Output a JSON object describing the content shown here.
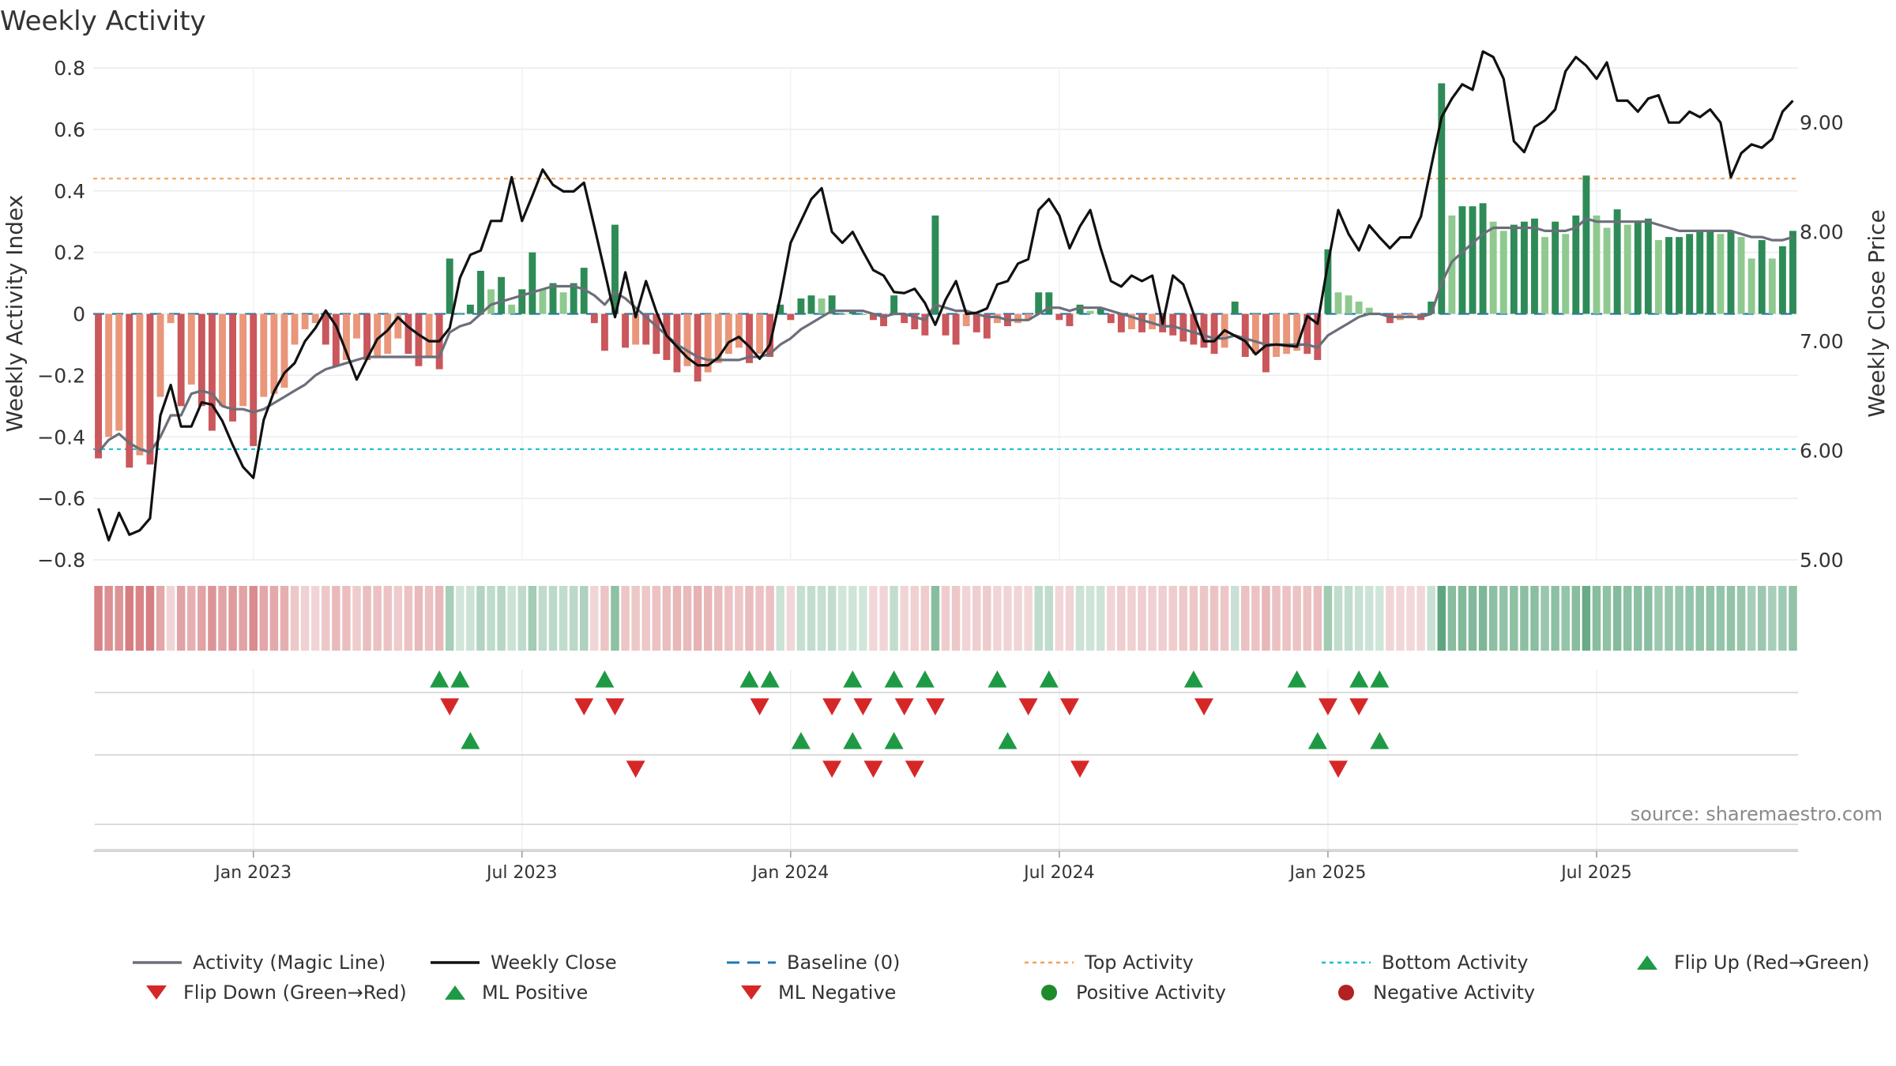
{
  "chart_data": {
    "type": "bar",
    "title": "Weekly Activity",
    "source": "source: sharemaestro.com",
    "ylabel": "Weekly Activity Index",
    "ylabel_right": "Weekly Close Price",
    "ylim": [
      -0.8,
      0.8
    ],
    "ylim_right": [
      5.0,
      9.5
    ],
    "y_ticks": [
      "0.8",
      "0.6",
      "0.4",
      "0.2",
      "0",
      "−0.2",
      "−0.4",
      "−0.6",
      "−0.8"
    ],
    "y_tick_values": [
      0.8,
      0.6,
      0.4,
      0.2,
      0,
      -0.2,
      -0.4,
      -0.6,
      -0.8
    ],
    "y_right_ticks": [
      "9.00",
      "8.00",
      "7.00",
      "6.00",
      "5.00"
    ],
    "y_right_tick_values": [
      9.0,
      8.0,
      7.0,
      6.0,
      5.0
    ],
    "x_ticks": [
      "Jan 2023",
      "Jul 2023",
      "Jan 2024",
      "Jul 2024",
      "Jan 2025",
      "Jul 2025"
    ],
    "x_tick_weeks": [
      15,
      41,
      67,
      93,
      119,
      145
    ],
    "top_activity": 0.44,
    "bottom_activity": -0.44,
    "activity": [
      -0.47,
      -0.4,
      -0.38,
      -0.5,
      -0.46,
      -0.49,
      -0.27,
      -0.03,
      -0.3,
      -0.23,
      -0.3,
      -0.38,
      -0.3,
      -0.35,
      -0.3,
      -0.43,
      -0.27,
      -0.26,
      -0.24,
      -0.1,
      -0.05,
      -0.03,
      -0.1,
      -0.17,
      -0.15,
      -0.08,
      -0.15,
      -0.14,
      -0.13,
      -0.08,
      -0.13,
      -0.17,
      -0.14,
      -0.18,
      0.18,
      0.0,
      0.03,
      0.14,
      0.08,
      0.12,
      0.03,
      0.08,
      0.2,
      0.08,
      0.1,
      0.07,
      0.1,
      0.15,
      -0.03,
      -0.12,
      0.29,
      -0.11,
      -0.1,
      -0.1,
      -0.13,
      -0.15,
      -0.19,
      -0.17,
      -0.22,
      -0.19,
      -0.16,
      -0.13,
      -0.11,
      -0.16,
      -0.13,
      -0.14,
      0.03,
      -0.02,
      0.05,
      0.06,
      0.05,
      0.06,
      0.0,
      0.01,
      0.0,
      -0.02,
      -0.04,
      0.06,
      -0.03,
      -0.05,
      -0.07,
      0.32,
      -0.07,
      -0.1,
      -0.04,
      -0.06,
      -0.08,
      -0.03,
      -0.04,
      -0.03,
      -0.02,
      0.07,
      0.07,
      -0.02,
      -0.04,
      0.03,
      0.01,
      0.02,
      -0.03,
      -0.06,
      -0.05,
      -0.06,
      -0.05,
      -0.06,
      -0.07,
      -0.09,
      -0.1,
      -0.11,
      -0.13,
      -0.11,
      0.04,
      -0.14,
      -0.13,
      -0.19,
      -0.14,
      -0.13,
      -0.12,
      -0.13,
      -0.15,
      0.21,
      0.07,
      0.06,
      0.04,
      0.02,
      0.0,
      -0.03,
      -0.02,
      -0.01,
      -0.02,
      0.04,
      0.75,
      0.32,
      0.35,
      0.35,
      0.36,
      0.3,
      0.27,
      0.29,
      0.3,
      0.31,
      0.25,
      0.3,
      0.26,
      0.32,
      0.45,
      0.32,
      0.28,
      0.34,
      0.29,
      0.3,
      0.31,
      0.24,
      0.25,
      0.25,
      0.26,
      0.27,
      0.27,
      0.26,
      0.27,
      0.25,
      0.18,
      0.24,
      0.18,
      0.22,
      0.27
    ],
    "magic_line": [
      -0.45,
      -0.41,
      -0.39,
      -0.42,
      -0.44,
      -0.45,
      -0.4,
      -0.33,
      -0.33,
      -0.26,
      -0.25,
      -0.26,
      -0.3,
      -0.31,
      -0.31,
      -0.32,
      -0.31,
      -0.29,
      -0.27,
      -0.25,
      -0.23,
      -0.2,
      -0.18,
      -0.17,
      -0.16,
      -0.15,
      -0.14,
      -0.14,
      -0.14,
      -0.14,
      -0.14,
      -0.14,
      -0.14,
      -0.14,
      -0.06,
      -0.04,
      -0.03,
      0.0,
      0.03,
      0.04,
      0.05,
      0.06,
      0.07,
      0.08,
      0.09,
      0.09,
      0.09,
      0.08,
      0.06,
      0.03,
      0.07,
      0.05,
      0.02,
      -0.01,
      -0.04,
      -0.07,
      -0.1,
      -0.12,
      -0.14,
      -0.15,
      -0.15,
      -0.15,
      -0.15,
      -0.14,
      -0.14,
      -0.13,
      -0.1,
      -0.08,
      -0.05,
      -0.03,
      -0.01,
      0.01,
      0.01,
      0.01,
      0.01,
      0.0,
      -0.01,
      0.0,
      0.0,
      -0.01,
      -0.02,
      0.03,
      0.02,
      0.01,
      0.01,
      0.0,
      -0.01,
      -0.01,
      -0.02,
      -0.02,
      -0.02,
      0.0,
      0.02,
      0.02,
      0.01,
      0.02,
      0.02,
      0.02,
      0.01,
      0.0,
      -0.01,
      -0.02,
      -0.03,
      -0.04,
      -0.04,
      -0.05,
      -0.06,
      -0.07,
      -0.08,
      -0.08,
      -0.07,
      -0.08,
      -0.09,
      -0.1,
      -0.1,
      -0.1,
      -0.1,
      -0.1,
      -0.11,
      -0.07,
      -0.05,
      -0.03,
      -0.01,
      0.0,
      0.0,
      -0.01,
      -0.01,
      -0.01,
      -0.01,
      0.0,
      0.1,
      0.17,
      0.2,
      0.23,
      0.26,
      0.28,
      0.28,
      0.28,
      0.28,
      0.28,
      0.27,
      0.27,
      0.27,
      0.28,
      0.31,
      0.3,
      0.3,
      0.3,
      0.3,
      0.3,
      0.3,
      0.29,
      0.28,
      0.27,
      0.27,
      0.27,
      0.27,
      0.27,
      0.27,
      0.26,
      0.25,
      0.25,
      0.24,
      0.24,
      0.25
    ],
    "close": [
      5.47,
      5.18,
      5.43,
      5.23,
      5.27,
      5.38,
      6.32,
      6.6,
      6.22,
      6.22,
      6.44,
      6.42,
      6.27,
      6.05,
      5.85,
      5.75,
      6.28,
      6.54,
      6.71,
      6.8,
      7.0,
      7.12,
      7.28,
      7.14,
      6.9,
      6.65,
      6.84,
      7.02,
      7.1,
      7.22,
      7.13,
      7.06,
      7.0,
      7.0,
      7.12,
      7.58,
      7.79,
      7.83,
      8.1,
      8.1,
      8.5,
      8.1,
      8.33,
      8.57,
      8.43,
      8.37,
      8.37,
      8.45,
      8.05,
      7.64,
      7.22,
      7.63,
      7.22,
      7.55,
      7.27,
      7.05,
      6.95,
      6.85,
      6.78,
      6.78,
      6.85,
      6.99,
      7.04,
      6.95,
      6.84,
      6.97,
      7.4,
      7.9,
      8.1,
      8.3,
      8.4,
      8.0,
      7.9,
      8.0,
      7.82,
      7.65,
      7.6,
      7.45,
      7.44,
      7.48,
      7.35,
      7.15,
      7.38,
      7.55,
      7.25,
      7.26,
      7.3,
      7.52,
      7.55,
      7.71,
      7.75,
      8.2,
      8.3,
      8.15,
      7.85,
      8.05,
      8.2,
      7.85,
      7.55,
      7.5,
      7.6,
      7.55,
      7.6,
      7.16,
      7.6,
      7.52,
      7.25,
      7.0,
      7.0,
      7.1,
      7.05,
      7.0,
      6.88,
      6.96,
      6.97,
      6.96,
      6.95,
      7.23,
      7.16,
      7.71,
      8.2,
      7.98,
      7.83,
      8.06,
      7.95,
      7.85,
      7.95,
      7.95,
      8.14,
      8.6,
      9.05,
      9.22,
      9.35,
      9.3,
      9.65,
      9.6,
      9.4,
      8.83,
      8.73,
      8.96,
      9.02,
      9.12,
      9.47,
      9.6,
      9.52,
      9.4,
      9.55,
      9.2,
      9.2,
      9.1,
      9.22,
      9.25,
      9.0,
      9.0,
      9.1,
      9.05,
      9.12,
      9.0,
      8.5,
      8.72,
      8.8,
      8.77,
      8.85,
      9.1,
      9.2
    ]
  },
  "markers": {
    "flip_up": [
      33,
      35,
      49,
      63,
      65,
      73,
      77,
      80,
      87,
      92,
      106,
      116,
      122,
      124
    ],
    "flip_down": [
      34,
      47,
      50,
      64,
      71,
      74,
      78,
      81,
      90,
      94,
      107,
      119,
      122
    ],
    "ml_positive": [
      36,
      68,
      73,
      77,
      88,
      118,
      124
    ],
    "ml_negative": [
      52,
      71,
      75,
      79,
      95,
      120
    ]
  },
  "legend": {
    "items": [
      {
        "label": "Activity (Magic Line)"
      },
      {
        "label": "Weekly Close"
      },
      {
        "label": "Baseline (0)"
      },
      {
        "label": "Top Activity"
      },
      {
        "label": "Bottom Activity"
      },
      {
        "label": "Flip Up (Red→Green)"
      },
      {
        "label": "Flip Down (Green→Red)"
      },
      {
        "label": "ML Positive"
      },
      {
        "label": "ML Negative"
      },
      {
        "label": "Positive Activity"
      },
      {
        "label": "Negative Activity"
      }
    ]
  },
  "colors": {
    "pos_dark": "#2e8b57",
    "pos_light": "#8fc98f",
    "neg_dark": "#c9575b",
    "neg_light": "#e9967a",
    "magic_line": "#6c6f7a",
    "close": "#111111",
    "baseline": "#1f77b4",
    "top": "#f4a259",
    "bottom": "#17becf",
    "up_marker": "#1e9a45",
    "down_marker": "#d62728",
    "pos_dot": "#1f8a2a",
    "neg_dot": "#b22222"
  }
}
